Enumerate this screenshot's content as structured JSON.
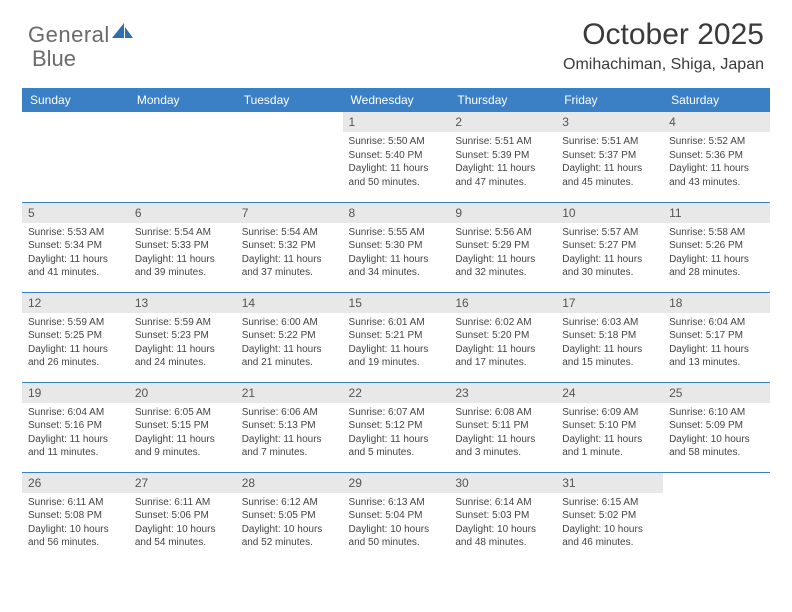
{
  "brand": {
    "general": "General",
    "blue": "Blue"
  },
  "title": "October 2025",
  "location": "Omihachiman, Shiga, Japan",
  "colors": {
    "header_bg": "#3b7fc4",
    "header_text": "#ffffff",
    "day_num_bg": "#e8e8e8",
    "border": "#3b7fc4",
    "body_text": "#444",
    "title_text": "#3a3a3a",
    "logo_gray": "#6a6a6a",
    "logo_blue": "#2f6fb0"
  },
  "weekdays": [
    "Sunday",
    "Monday",
    "Tuesday",
    "Wednesday",
    "Thursday",
    "Friday",
    "Saturday"
  ],
  "weeks": [
    [
      null,
      null,
      null,
      {
        "d": "1",
        "sr": "5:50 AM",
        "ss": "5:40 PM",
        "dl": "11 hours and 50 minutes."
      },
      {
        "d": "2",
        "sr": "5:51 AM",
        "ss": "5:39 PM",
        "dl": "11 hours and 47 minutes."
      },
      {
        "d": "3",
        "sr": "5:51 AM",
        "ss": "5:37 PM",
        "dl": "11 hours and 45 minutes."
      },
      {
        "d": "4",
        "sr": "5:52 AM",
        "ss": "5:36 PM",
        "dl": "11 hours and 43 minutes."
      }
    ],
    [
      {
        "d": "5",
        "sr": "5:53 AM",
        "ss": "5:34 PM",
        "dl": "11 hours and 41 minutes."
      },
      {
        "d": "6",
        "sr": "5:54 AM",
        "ss": "5:33 PM",
        "dl": "11 hours and 39 minutes."
      },
      {
        "d": "7",
        "sr": "5:54 AM",
        "ss": "5:32 PM",
        "dl": "11 hours and 37 minutes."
      },
      {
        "d": "8",
        "sr": "5:55 AM",
        "ss": "5:30 PM",
        "dl": "11 hours and 34 minutes."
      },
      {
        "d": "9",
        "sr": "5:56 AM",
        "ss": "5:29 PM",
        "dl": "11 hours and 32 minutes."
      },
      {
        "d": "10",
        "sr": "5:57 AM",
        "ss": "5:27 PM",
        "dl": "11 hours and 30 minutes."
      },
      {
        "d": "11",
        "sr": "5:58 AM",
        "ss": "5:26 PM",
        "dl": "11 hours and 28 minutes."
      }
    ],
    [
      {
        "d": "12",
        "sr": "5:59 AM",
        "ss": "5:25 PM",
        "dl": "11 hours and 26 minutes."
      },
      {
        "d": "13",
        "sr": "5:59 AM",
        "ss": "5:23 PM",
        "dl": "11 hours and 24 minutes."
      },
      {
        "d": "14",
        "sr": "6:00 AM",
        "ss": "5:22 PM",
        "dl": "11 hours and 21 minutes."
      },
      {
        "d": "15",
        "sr": "6:01 AM",
        "ss": "5:21 PM",
        "dl": "11 hours and 19 minutes."
      },
      {
        "d": "16",
        "sr": "6:02 AM",
        "ss": "5:20 PM",
        "dl": "11 hours and 17 minutes."
      },
      {
        "d": "17",
        "sr": "6:03 AM",
        "ss": "5:18 PM",
        "dl": "11 hours and 15 minutes."
      },
      {
        "d": "18",
        "sr": "6:04 AM",
        "ss": "5:17 PM",
        "dl": "11 hours and 13 minutes."
      }
    ],
    [
      {
        "d": "19",
        "sr": "6:04 AM",
        "ss": "5:16 PM",
        "dl": "11 hours and 11 minutes."
      },
      {
        "d": "20",
        "sr": "6:05 AM",
        "ss": "5:15 PM",
        "dl": "11 hours and 9 minutes."
      },
      {
        "d": "21",
        "sr": "6:06 AM",
        "ss": "5:13 PM",
        "dl": "11 hours and 7 minutes."
      },
      {
        "d": "22",
        "sr": "6:07 AM",
        "ss": "5:12 PM",
        "dl": "11 hours and 5 minutes."
      },
      {
        "d": "23",
        "sr": "6:08 AM",
        "ss": "5:11 PM",
        "dl": "11 hours and 3 minutes."
      },
      {
        "d": "24",
        "sr": "6:09 AM",
        "ss": "5:10 PM",
        "dl": "11 hours and 1 minute."
      },
      {
        "d": "25",
        "sr": "6:10 AM",
        "ss": "5:09 PM",
        "dl": "10 hours and 58 minutes."
      }
    ],
    [
      {
        "d": "26",
        "sr": "6:11 AM",
        "ss": "5:08 PM",
        "dl": "10 hours and 56 minutes."
      },
      {
        "d": "27",
        "sr": "6:11 AM",
        "ss": "5:06 PM",
        "dl": "10 hours and 54 minutes."
      },
      {
        "d": "28",
        "sr": "6:12 AM",
        "ss": "5:05 PM",
        "dl": "10 hours and 52 minutes."
      },
      {
        "d": "29",
        "sr": "6:13 AM",
        "ss": "5:04 PM",
        "dl": "10 hours and 50 minutes."
      },
      {
        "d": "30",
        "sr": "6:14 AM",
        "ss": "5:03 PM",
        "dl": "10 hours and 48 minutes."
      },
      {
        "d": "31",
        "sr": "6:15 AM",
        "ss": "5:02 PM",
        "dl": "10 hours and 46 minutes."
      },
      null
    ]
  ],
  "labels": {
    "sunrise": "Sunrise:",
    "sunset": "Sunset:",
    "daylight": "Daylight:"
  }
}
